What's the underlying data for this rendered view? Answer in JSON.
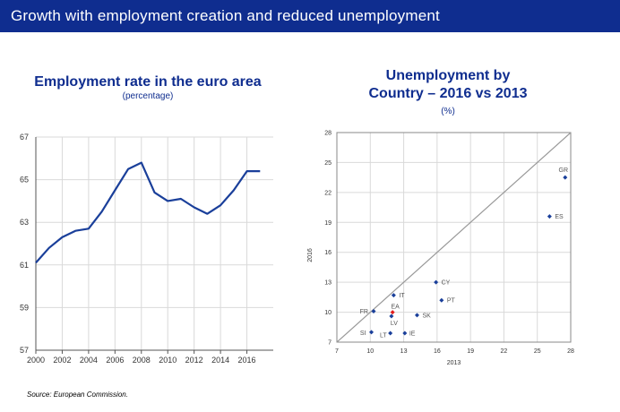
{
  "banner": {
    "title": "Growth with employment creation and reduced unemployment"
  },
  "source": "Source: European Commission.",
  "colors": {
    "brand": "#0f2d8f",
    "line": "#1a3f9a",
    "highlight": "#e21c1c",
    "grid": "#d9d9d9"
  },
  "chart_data": [
    {
      "type": "line",
      "title": "Employment rate in the euro area",
      "subtitle": "(percentage)",
      "xlabel": "",
      "ylabel": "",
      "xlim": [
        2000,
        2018
      ],
      "ylim": [
        57,
        67
      ],
      "x_ticks": [
        "2000",
        "2002",
        "2004",
        "2006",
        "2008",
        "2010",
        "2012",
        "2014",
        "2016"
      ],
      "y_ticks": [
        "57",
        "59",
        "61",
        "63",
        "65",
        "67"
      ],
      "series": [
        {
          "name": "Employment rate",
          "x": [
            2000,
            2001,
            2002,
            2003,
            2004,
            2005,
            2006,
            2007,
            2008,
            2009,
            2010,
            2011,
            2012,
            2013,
            2014,
            2015,
            2016,
            2017
          ],
          "values": [
            61.1,
            61.8,
            62.3,
            62.6,
            62.7,
            63.5,
            64.5,
            65.5,
            65.8,
            64.4,
            64.0,
            64.1,
            63.7,
            63.4,
            63.8,
            64.5,
            65.4,
            65.4
          ]
        }
      ]
    },
    {
      "type": "scatter",
      "title": "Unemployment by Country – 2016 vs 2013",
      "subtitle": "(%)",
      "xlabel": "2013",
      "ylabel": "2016",
      "xlim": [
        7,
        28
      ],
      "ylim": [
        7,
        28
      ],
      "x_ticks": [
        "7",
        "10",
        "13",
        "16",
        "19",
        "22",
        "25",
        "28"
      ],
      "y_ticks": [
        "7",
        "10",
        "13",
        "16",
        "19",
        "22",
        "25",
        "28"
      ],
      "reference_line": "y = x",
      "points": [
        {
          "label": "GR",
          "x": 27.5,
          "y": 23.5
        },
        {
          "label": "ES",
          "x": 26.1,
          "y": 19.6
        },
        {
          "label": "CY",
          "x": 15.9,
          "y": 13.0
        },
        {
          "label": "PT",
          "x": 16.4,
          "y": 11.2
        },
        {
          "label": "IT",
          "x": 12.1,
          "y": 11.7
        },
        {
          "label": "EA",
          "x": 12.0,
          "y": 10.0,
          "highlight": true
        },
        {
          "label": "FR",
          "x": 10.3,
          "y": 10.1
        },
        {
          "label": "SK",
          "x": 14.2,
          "y": 9.7
        },
        {
          "label": "LV",
          "x": 11.9,
          "y": 9.6
        },
        {
          "label": "IE",
          "x": 13.1,
          "y": 7.9
        },
        {
          "label": "SI",
          "x": 10.1,
          "y": 8.0
        },
        {
          "label": "LT",
          "x": 11.8,
          "y": 7.9
        }
      ]
    }
  ]
}
